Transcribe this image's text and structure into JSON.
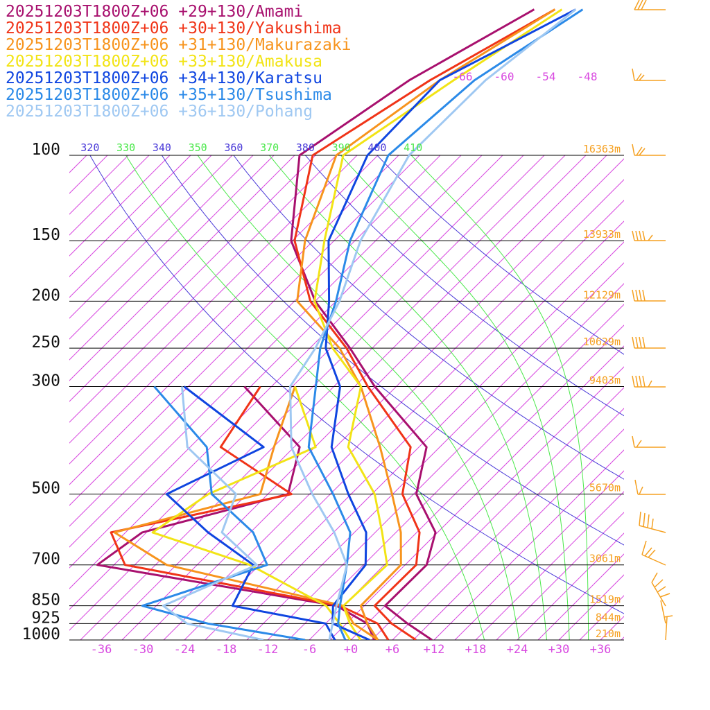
{
  "chart_data": {
    "type": "skewt",
    "ylim": [
      1000,
      100
    ],
    "yticks": [
      100,
      150,
      200,
      250,
      300,
      500,
      700,
      850,
      925,
      1000
    ],
    "height_labels": [
      "16363m",
      "13933m",
      "12129m",
      "10629m",
      "9403m",
      "5670m",
      "3061m",
      "1519m",
      "844m",
      "210m"
    ],
    "xlim": [
      -40,
      40
    ],
    "xticks": [
      -36,
      -30,
      -24,
      -18,
      -12,
      -6,
      {
        "value": 0,
        "label": "+0"
      },
      {
        "value": 6,
        "label": "+6"
      },
      {
        "value": 12,
        "label": "+12"
      },
      {
        "value": 18,
        "label": "+18"
      },
      {
        "value": 24,
        "label": "+24"
      },
      {
        "value": 30,
        "label": "+30"
      },
      {
        "value": 36,
        "label": "+36"
      }
    ],
    "isotherm_labels": [
      -66,
      -60,
      -54,
      -48
    ],
    "theta_labels": [
      320,
      330,
      340,
      350,
      360,
      370,
      380,
      390,
      400,
      410
    ],
    "isotherm_color": "#d848e0",
    "dry_adiabat_color": "#4a3ad8",
    "moist_adiabat_color": "#4ae84a",
    "levels": [
      1000,
      925,
      850,
      700,
      600,
      500,
      400,
      300,
      250,
      200,
      150,
      100,
      70,
      50
    ],
    "series": [
      {
        "name": "20251203T1800Z+06 +29+130/Amami",
        "color": "#a8106e",
        "temperature": [
          11.7,
          5.8,
          0,
          0.1,
          -3.3,
          -11.6,
          -16.9,
          -33.1,
          -42.2,
          -54,
          -66.2,
          -77.3,
          -72.3,
          -64.5
        ],
        "dewpoint": [
          3.4,
          0,
          -7,
          -47.4,
          -45.6,
          -30.1,
          -35.2,
          -51.9,
          null,
          null,
          null,
          null,
          null,
          null
        ]
      },
      {
        "name": "20251203T1800Z+06 +30+130/Yakushima",
        "color": "#f03418",
        "temperature": [
          9.4,
          3.5,
          -1.5,
          -1.4,
          -5.6,
          -13.6,
          -19.2,
          -34.1,
          -42.7,
          -54.7,
          -65.7,
          -75.4,
          -69.3,
          -61.5
        ],
        "dewpoint": [
          5.4,
          1.5,
          -6.5,
          -43.4,
          -50.1,
          -29.6,
          -46.6,
          -49.6,
          null,
          null,
          null,
          null,
          null,
          null
        ]
      },
      {
        "name": "20251203T1800Z+06 +31+130/Makurazaki",
        "color": "#f7941d",
        "temperature": [
          3.9,
          0,
          -3.5,
          -3.6,
          -8.3,
          -15.1,
          -23.6,
          -35.1,
          -43.7,
          -56.6,
          -64.2,
          -72,
          -67.9,
          -61.5
        ],
        "dewpoint": [
          3.9,
          -2,
          -6,
          -37.4,
          -49.6,
          -34.1,
          -38.9,
          -44.6,
          null,
          null,
          null,
          null,
          null,
          null
        ]
      },
      {
        "name": "20251203T1800Z+06 +33+130/Amakusa",
        "color": "#f2e416",
        "temperature": [
          1.4,
          -2.5,
          -6,
          -5.6,
          -11,
          -17.6,
          -28.2,
          -35.1,
          -44.7,
          -54.1,
          -61.4,
          -71,
          -65.9,
          -60.5
        ],
        "dewpoint": [
          -0.1,
          -4,
          -8.5,
          -25.4,
          -44.1,
          -41.6,
          -32.9,
          -44.6,
          null,
          null,
          null,
          null,
          null,
          null
        ]
      },
      {
        "name": "20251203T1800Z+06 +34+130/Karatsu",
        "color": "#0f45e0",
        "temperature": [
          2.7,
          -5,
          -7.5,
          -8.7,
          -13.3,
          -21.4,
          -30.6,
          -38.1,
          -45.7,
          -52,
          -60.8,
          -67.5,
          -67.9,
          -58.5
        ],
        "dewpoint": [
          -2.3,
          -6,
          -22,
          -24.9,
          -36.1,
          -47.6,
          -40.4,
          -60.6,
          null,
          null,
          null,
          null,
          null,
          null
        ]
      },
      {
        "name": "20251203T1800Z+06 +35+130/Tsushima",
        "color": "#2b8ae8",
        "temperature": [
          -0.8,
          -4.2,
          -6.5,
          -11.4,
          -15.6,
          -23.6,
          -33.9,
          -41.6,
          -46.5,
          -51,
          -57.7,
          -64.5,
          -62.9,
          -57.5
        ],
        "dewpoint": [
          -6.6,
          -23,
          -35,
          -22.9,
          -29.6,
          -41.1,
          -48.6,
          -64.9,
          null,
          null,
          null,
          null,
          null,
          null
        ]
      },
      {
        "name": "20251203T1800Z+06 +36+130/Pohang",
        "color": "#9fc8f2",
        "temperature": [
          -3.1,
          -5,
          -7,
          -11.4,
          -17.9,
          -26.6,
          -36.4,
          -45.3,
          -47.2,
          -50.5,
          -56.2,
          -61.5,
          -61.3,
          -58.5
        ],
        "dewpoint": [
          -12.6,
          -26,
          -32,
          -24.4,
          -34.1,
          -37.6,
          -51.4,
          -60.9,
          null,
          null,
          null,
          null,
          null,
          null
        ]
      }
    ]
  }
}
